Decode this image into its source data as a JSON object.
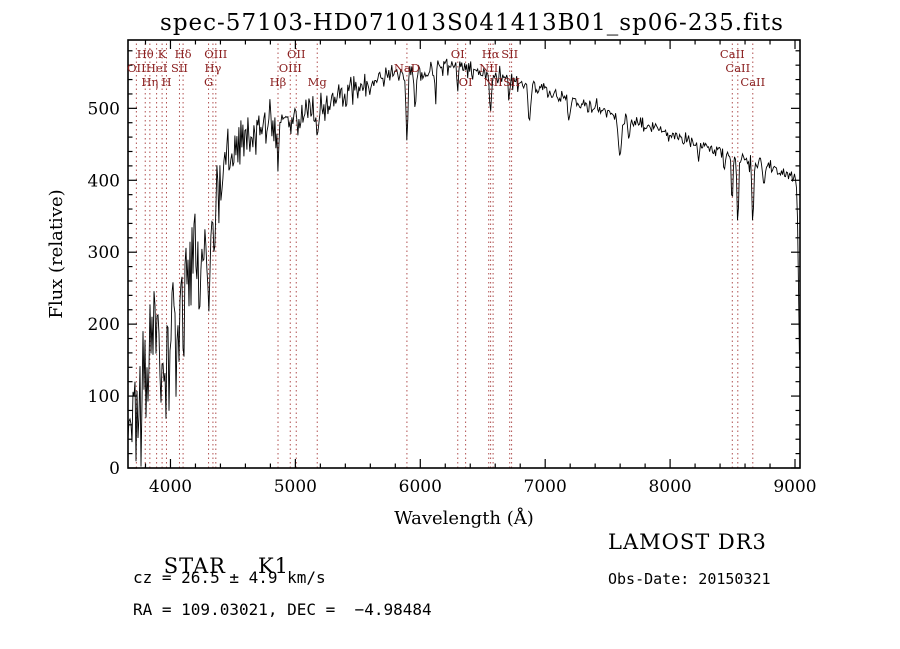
{
  "title": "spec-57103-HD071013S041413B01_sp06-235.fits",
  "colors": {
    "background": "#ffffff",
    "spectrum": "#000000",
    "axis": "#000000",
    "marker_line": "#b05050",
    "marker_label": "#8b2020"
  },
  "footer": {
    "object_type": "STAR",
    "subclass": "K1",
    "survey": "LAMOST DR3",
    "cz_line": "cz = 26.5 ± 4.9 km/s",
    "obs_date_line": "Obs-Date: 20150321",
    "radec_line": "RA = 109.03021, DEC =  −4.98484"
  },
  "chart_data": {
    "type": "line",
    "title": "spec-57103-HD071013S041413B01_sp06-235.fits",
    "xlabel": "Wavelength (Å)",
    "ylabel": "Flux (relative)",
    "xlim": [
      3660,
      9040
    ],
    "ylim": [
      0,
      595
    ],
    "grid": false,
    "x_ticks": [
      4000,
      5000,
      6000,
      7000,
      8000,
      9000
    ],
    "x_minor_step": 200,
    "y_ticks": [
      0,
      100,
      200,
      300,
      400,
      500
    ],
    "y_minor_step": 20,
    "series_name": "flux",
    "sample_step": 8,
    "noise_seed": 57103,
    "continuum_anchors": {
      "x": [
        3660,
        3680,
        3700,
        3720,
        3740,
        3760,
        3780,
        3800,
        3830,
        3860,
        3900,
        3950,
        4000,
        4050,
        4100,
        4150,
        4200,
        4250,
        4300,
        4350,
        4400,
        4450,
        4500,
        4600,
        4700,
        4800,
        4900,
        5000,
        5100,
        5200,
        5300,
        5400,
        5500,
        5600,
        5700,
        5800,
        5900,
        6000,
        6100,
        6200,
        6300,
        6400,
        6500,
        6600,
        6700,
        6800,
        6900,
        7000,
        7100,
        7200,
        7300,
        7400,
        7500,
        7600,
        7700,
        7800,
        7900,
        8000,
        8100,
        8200,
        8300,
        8400,
        8500,
        8600,
        8700,
        8800,
        8900,
        8950,
        9000,
        9010,
        9020,
        9030,
        9040
      ],
      "y": [
        25,
        60,
        90,
        110,
        95,
        120,
        130,
        140,
        150,
        160,
        170,
        178,
        190,
        215,
        235,
        260,
        285,
        305,
        330,
        365,
        400,
        425,
        440,
        458,
        468,
        478,
        487,
        494,
        500,
        506,
        514,
        520,
        528,
        535,
        541,
        548,
        552,
        551,
        554,
        557,
        559,
        553,
        549,
        546,
        543,
        536,
        529,
        523,
        516,
        511,
        506,
        501,
        496,
        489,
        483,
        477,
        471,
        465,
        459,
        453,
        447,
        441,
        435,
        429,
        423,
        417,
        411,
        408,
        405,
        395,
        340,
        220,
        100
      ]
    },
    "noise_profile": {
      "x": [
        3660,
        3750,
        3850,
        3950,
        4050,
        4150,
        4300,
        4450,
        4600,
        4800,
        5000,
        5200,
        5500,
        5800,
        6100,
        6400,
        6700,
        7000,
        7400,
        7800,
        8200,
        8600,
        9000,
        9040
      ],
      "sigma": [
        45,
        55,
        50,
        46,
        40,
        36,
        30,
        25,
        20,
        16,
        13,
        11,
        9,
        8,
        7,
        6,
        5.5,
        5,
        5,
        4.5,
        4.5,
        5,
        4.5,
        4
      ]
    },
    "absorption_features": [
      {
        "center": 3735,
        "depth": 50,
        "width": 10
      },
      {
        "center": 3790,
        "depth": 40,
        "width": 8
      },
      {
        "center": 3820,
        "depth": 45,
        "width": 8
      },
      {
        "center": 3933,
        "depth": 85,
        "width": 9
      },
      {
        "center": 3968,
        "depth": 80,
        "width": 9
      },
      {
        "center": 4101,
        "depth": 55,
        "width": 8
      },
      {
        "center": 4227,
        "depth": 35,
        "width": 7
      },
      {
        "center": 4305,
        "depth": 55,
        "width": 12
      },
      {
        "center": 4340,
        "depth": 40,
        "width": 8
      },
      {
        "center": 4383,
        "depth": 30,
        "width": 7
      },
      {
        "center": 4861,
        "depth": 50,
        "width": 8
      },
      {
        "center": 5175,
        "depth": 45,
        "width": 12
      },
      {
        "center": 5270,
        "depth": 25,
        "width": 8
      },
      {
        "center": 5893,
        "depth": 95,
        "width": 8
      },
      {
        "center": 5960,
        "depth": 55,
        "width": 6
      },
      {
        "center": 6122,
        "depth": 35,
        "width": 6
      },
      {
        "center": 6300,
        "depth": 25,
        "width": 6
      },
      {
        "center": 6563,
        "depth": 60,
        "width": 7
      },
      {
        "center": 6710,
        "depth": 30,
        "width": 6
      },
      {
        "center": 6870,
        "depth": 50,
        "width": 10
      },
      {
        "center": 7190,
        "depth": 25,
        "width": 9
      },
      {
        "center": 7600,
        "depth": 55,
        "width": 13
      },
      {
        "center": 7670,
        "depth": 30,
        "width": 8
      },
      {
        "center": 8227,
        "depth": 25,
        "width": 7
      },
      {
        "center": 8434,
        "depth": 30,
        "width": 6
      },
      {
        "center": 8498,
        "depth": 65,
        "width": 7
      },
      {
        "center": 8542,
        "depth": 90,
        "width": 7
      },
      {
        "center": 8662,
        "depth": 85,
        "width": 7
      },
      {
        "center": 8750,
        "depth": 35,
        "width": 6
      }
    ],
    "spectral_lines": [
      {
        "wavelength": 3727,
        "label": "OII",
        "row": 2
      },
      {
        "wavelength": 3798,
        "label": "Hθ",
        "row": 1
      },
      {
        "wavelength": 3835,
        "label": "Hη",
        "row": 3
      },
      {
        "wavelength": 3889,
        "label": "HeI",
        "row": 2
      },
      {
        "wavelength": 3933,
        "label": "K",
        "row": 1
      },
      {
        "wavelength": 3968,
        "label": "H",
        "row": 3
      },
      {
        "wavelength": 4072,
        "label": "SII",
        "row": 2
      },
      {
        "wavelength": 4101,
        "label": "Hδ",
        "row": 1
      },
      {
        "wavelength": 4305,
        "label": "G",
        "row": 3
      },
      {
        "wavelength": 4340,
        "label": "Hγ",
        "row": 2
      },
      {
        "wavelength": 4363,
        "label": "OIII",
        "row": 1
      },
      {
        "wavelength": 4861,
        "label": "Hβ",
        "row": 3
      },
      {
        "wavelength": 4959,
        "label": "OIII",
        "row": 2
      },
      {
        "wavelength": 5007,
        "label": "OII",
        "row": 1
      },
      {
        "wavelength": 5175,
        "label": "Mg",
        "row": 3
      },
      {
        "wavelength": 5893,
        "label": "NaD",
        "row": 2
      },
      {
        "wavelength": 6300,
        "label": "OI",
        "row": 1
      },
      {
        "wavelength": 6363,
        "label": "OI",
        "row": 3
      },
      {
        "wavelength": 6548,
        "label": "NII",
        "row": 2
      },
      {
        "wavelength": 6563,
        "label": "Hα",
        "row": 1
      },
      {
        "wavelength": 6583,
        "label": "NII",
        "row": 3
      },
      {
        "wavelength": 6716,
        "label": "SII",
        "row": 1
      },
      {
        "wavelength": 6731,
        "label": "SII",
        "row": 3
      },
      {
        "wavelength": 8498,
        "label": "CaII",
        "row": 1
      },
      {
        "wavelength": 8542,
        "label": "CaII",
        "row": 2
      },
      {
        "wavelength": 8662,
        "label": "CaII",
        "row": 3
      }
    ]
  }
}
